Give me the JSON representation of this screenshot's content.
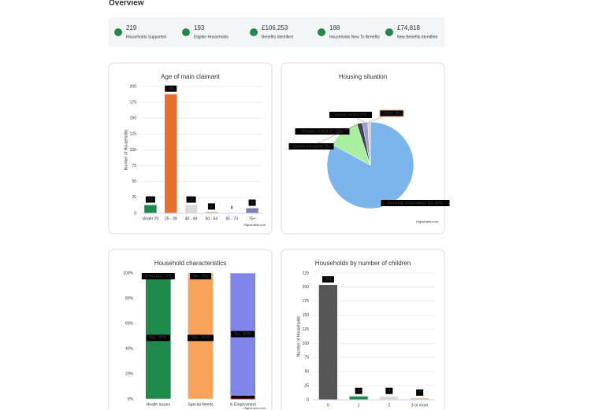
{
  "header": {
    "title": "Overview"
  },
  "stats": [
    {
      "value": "219",
      "label": "Households Supported"
    },
    {
      "value": "193",
      "label": "Eligible Households"
    },
    {
      "value": "£106,253",
      "label": "Benefits Identified"
    },
    {
      "value": "188",
      "label": "Households New To Benefits"
    },
    {
      "value": "£74,818",
      "label": "New Benefits Identified"
    }
  ],
  "chart_data": [
    {
      "type": "bar",
      "title": "Age of main claimant",
      "y_label": "Number of Households",
      "categories": [
        "Under 25",
        "25 - 39",
        "40 - 49",
        "50 - 64",
        "65 - 74",
        "75+"
      ],
      "values": [
        13,
        188,
        13,
        2,
        0,
        8
      ],
      "colors": [
        "#1f8a4c",
        "#e5702f",
        "#d9d9d9",
        "#e8a070",
        "#cccccc",
        "#7f7fb0"
      ],
      "ylim": [
        0,
        200
      ],
      "yticks": [
        0,
        25,
        50,
        75,
        100,
        125,
        150,
        175,
        200
      ],
      "grid": true,
      "credit": "Highcharts.com"
    },
    {
      "type": "pie",
      "title": "Housing situation",
      "categories": [
        "Housing association",
        "Private rented",
        "Owner occupied",
        "Social rented",
        "Other"
      ],
      "values": [
        83,
        12,
        2,
        2,
        1
      ],
      "value_labels": [
        "Housing association 181 83%",
        "Private rented 27 12%",
        "Owner occupied 2%",
        "Social rented 2%",
        "Other 1%"
      ],
      "colors": [
        "#7cb5ec",
        "#a8f0a0",
        "#444444",
        "#9a9ae0",
        "#e8c9a0"
      ],
      "credit": "Highcharts.com"
    },
    {
      "type": "stacked",
      "title": "Household characteristics",
      "categories": [
        "Health Issues",
        "Special Needs",
        "In Employment"
      ],
      "colors": [
        "#1f8a4c",
        "#f7a35c",
        "#8085e9"
      ],
      "series": [
        {
          "name": "Yes",
          "values": [
            0,
            97,
            3
          ],
          "value_labels": [
            null,
            "Yes - 97%",
            "Yes - 3%"
          ]
        },
        {
          "name": "No",
          "values": [
            97,
            3,
            97
          ],
          "value_labels": [
            "No - 97%",
            "No - 3%",
            "No - 97%"
          ]
        },
        {
          "name": "Unknown",
          "values": [
            3,
            0,
            0
          ],
          "value_labels": [
            "Unknown - 3%",
            null,
            null
          ]
        }
      ],
      "ylim": [
        0,
        100
      ],
      "yticks": [
        {
          "value": 0,
          "label": "0%"
        },
        {
          "value": 20,
          "label": "20%"
        },
        {
          "value": 40,
          "label": "40%"
        },
        {
          "value": 60,
          "label": "60%"
        },
        {
          "value": 80,
          "label": "80%"
        },
        {
          "value": 100,
          "label": "100%"
        }
      ],
      "credit": "Highcharts.com"
    },
    {
      "type": "bar",
      "title": "Households by number of children",
      "y_label": "Number of Households",
      "categories": [
        "0",
        "1",
        "2",
        "3 or more"
      ],
      "values": [
        204,
        6,
        6,
        3
      ],
      "colors": [
        "#555555",
        "#1f8a4c",
        "#d9d9d9",
        "#e8c9a0"
      ],
      "ylim": [
        0,
        225
      ],
      "yticks": [
        0,
        25,
        50,
        75,
        100,
        125,
        150,
        175,
        200,
        225
      ],
      "grid": true,
      "credit": "Highcharts.com"
    }
  ]
}
